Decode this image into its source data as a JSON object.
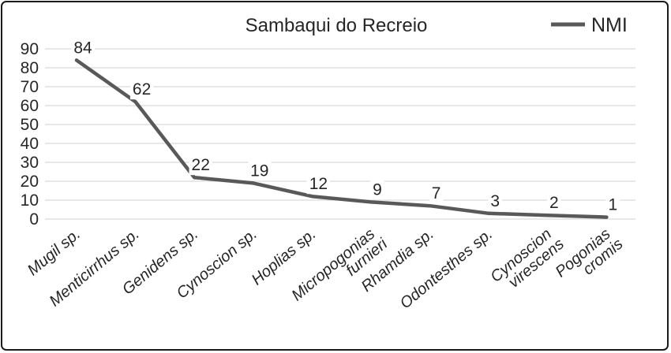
{
  "chart_data": {
    "type": "line",
    "title": "Sambaqui do Recreio",
    "legend_position": "top-right",
    "grid": true,
    "categories": [
      "Mugil sp.",
      "Menticirrhus sp.",
      "Genidens sp.",
      "Cynoscion sp.",
      "Hoplias sp.",
      "Micropogonias furnieri",
      "Rhamdia sp.",
      "Odontesthes sp.",
      "Cynoscion virescens",
      "Pogonias cromis"
    ],
    "series": [
      {
        "name": "NMI",
        "values": [
          84,
          62,
          22,
          19,
          12,
          9,
          7,
          3,
          2,
          1
        ]
      }
    ],
    "xlabel": "",
    "ylabel": "",
    "ylim": [
      0,
      90
    ],
    "ytick_step": 10,
    "y_ticks": [
      0,
      10,
      20,
      30,
      40,
      50,
      60,
      70,
      80,
      90
    ],
    "styles": {
      "line_color": "#595959",
      "grid_color": "#d9d9d9",
      "text_color": "#262626",
      "background_color": "#ffffff",
      "frame_border_color": "#1a1a1a"
    }
  }
}
